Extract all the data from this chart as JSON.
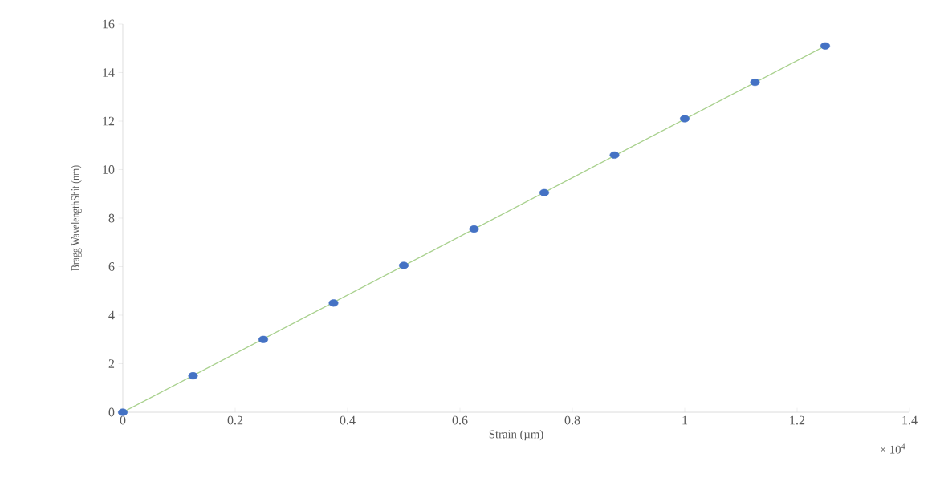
{
  "chart_data": {
    "type": "scatter",
    "xlabel": "Strain (µm)",
    "ylabel": "Bragg WavelengthShit (nm)",
    "annotations": [
      "× 10$^{4}$"
    ],
    "x": [
      0,
      0.125,
      0.25,
      0.375,
      0.5,
      0.625,
      0.75,
      0.875,
      1,
      1.125,
      1.25
    ],
    "series": [
      {
        "color": "#4472c4",
        "marker": "circle",
        "values": [
          0,
          1.5,
          3.0,
          4.5,
          6.05,
          7.55,
          9.05,
          10.6,
          12.1,
          13.6,
          15.1
        ]
      },
      {
        "type": "line",
        "color": "#a9d18e",
        "marker": "none",
        "line_style": "solid",
        "x": [
          0,
          1.25
        ],
        "values": [
          0,
          15.1
        ]
      }
    ],
    "xlim": [
      0,
      1.4
    ],
    "ylim": [
      0,
      16
    ],
    "xticks": [
      0,
      0.2,
      0.4,
      0.6,
      0.8,
      1,
      1.2,
      1.4
    ],
    "yticks": [
      0,
      2,
      4,
      6,
      8,
      10,
      12,
      14,
      16
    ]
  }
}
